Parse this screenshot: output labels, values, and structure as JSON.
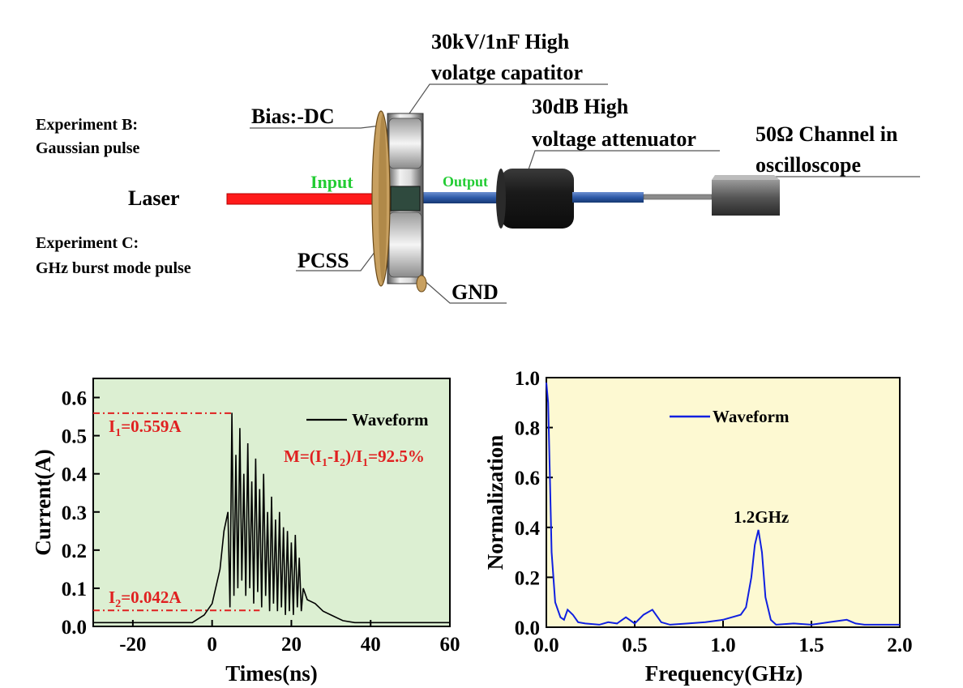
{
  "diagram": {
    "labels": {
      "capacitor_line1": "30kV/1nF High",
      "capacitor_line2": "volatge capatitor",
      "bias": "Bias:-DC",
      "attenuator_line1": "30dB High",
      "attenuator_line2": "voltage attenuator",
      "oscilloscope_line1": "50Ω Channel in",
      "oscilloscope_line2": "oscilloscope",
      "exp_b_line1": "Experiment B:",
      "exp_b_line2": "Gaussian pulse",
      "laser": "Laser",
      "input": "Input",
      "output": "Output",
      "exp_c_line1": "Experiment C:",
      "exp_c_line2": "GHz burst mode pulse",
      "pcss": "PCSS",
      "gnd": "GND"
    },
    "colors": {
      "laser": "#ff1a1a",
      "input_text": "#22cc33",
      "output_text": "#22cc33",
      "coax": "#2e5aa8",
      "disk": "#c8a060"
    }
  },
  "chart_data": [
    {
      "type": "line",
      "xlabel": "Times(ns)",
      "ylabel": "Current(A)",
      "xlim": [
        -30,
        60
      ],
      "ylim": [
        0,
        0.65
      ],
      "xticks": [
        -20,
        0,
        20,
        40,
        60
      ],
      "yticks": [
        0.0,
        0.1,
        0.2,
        0.3,
        0.4,
        0.5,
        0.6
      ],
      "background": "#dcefd2",
      "legend": {
        "placement": "top-right",
        "entries": [
          "Waveform"
        ]
      },
      "series": [
        {
          "name": "Waveform",
          "color": "#000000",
          "x": [
            -30,
            -5,
            -2,
            0,
            2,
            3,
            4,
            4.5,
            5,
            5.5,
            6,
            6.5,
            7,
            7.5,
            8,
            8.5,
            9,
            9.5,
            10,
            10.5,
            11,
            11.5,
            12,
            12.5,
            13,
            13.5,
            14,
            14.5,
            15,
            15.5,
            16,
            16.5,
            17,
            17.5,
            18,
            18.5,
            19,
            19.5,
            20,
            20.5,
            21,
            21.5,
            22,
            22.5,
            23,
            24,
            26,
            28,
            30,
            33,
            36,
            40,
            50,
            60
          ],
          "y": [
            0.01,
            0.01,
            0.03,
            0.06,
            0.15,
            0.25,
            0.3,
            0.05,
            0.56,
            0.08,
            0.45,
            0.1,
            0.52,
            0.12,
            0.4,
            0.08,
            0.48,
            0.1,
            0.38,
            0.06,
            0.44,
            0.09,
            0.36,
            0.05,
            0.4,
            0.08,
            0.3,
            0.04,
            0.34,
            0.06,
            0.28,
            0.04,
            0.3,
            0.05,
            0.26,
            0.03,
            0.25,
            0.04,
            0.22,
            0.03,
            0.24,
            0.05,
            0.18,
            0.04,
            0.1,
            0.07,
            0.06,
            0.04,
            0.03,
            0.015,
            0.01,
            0.01,
            0.01,
            0.01
          ]
        }
      ],
      "annotations": {
        "i1": {
          "label": "I",
          "sub": "1",
          "rest": "=0.559A",
          "value": 0.559,
          "x_end": 5
        },
        "i2": {
          "label": "I",
          "sub": "2",
          "rest": "=0.042A",
          "value": 0.042,
          "x_end": 12
        },
        "m_prefix": "M=(I",
        "m_sub1": "1",
        "m_mid": "-I",
        "m_sub2": "2",
        "m_close": ")/I",
        "m_sub3": "1",
        "m_value": "=92.5%",
        "color": "#e02020"
      }
    },
    {
      "type": "line",
      "xlabel": "Frequency(GHz)",
      "ylabel": "Normalization",
      "xlim": [
        0,
        2.0
      ],
      "ylim": [
        0,
        1.0
      ],
      "xticks": [
        0.0,
        0.5,
        1.0,
        1.5,
        2.0
      ],
      "yticks": [
        0.0,
        0.2,
        0.4,
        0.6,
        0.8,
        1.0
      ],
      "xtick_labels": [
        "0.0",
        "0.5",
        "1.0",
        "1.5",
        "2.0"
      ],
      "ytick_labels": [
        "0.0",
        "0.2",
        "0.4",
        "0.6",
        "0.8",
        "1.0"
      ],
      "background": "#fdf9d2",
      "legend": {
        "placement": "top-center",
        "entries": [
          "Waveform"
        ]
      },
      "peak_label": "1.2GHz",
      "series": [
        {
          "name": "Waveform",
          "color": "#1020e0",
          "x": [
            0.0,
            0.01,
            0.02,
            0.03,
            0.05,
            0.08,
            0.1,
            0.12,
            0.15,
            0.18,
            0.22,
            0.3,
            0.35,
            0.4,
            0.45,
            0.5,
            0.55,
            0.6,
            0.65,
            0.7,
            0.8,
            0.9,
            1.0,
            1.05,
            1.1,
            1.13,
            1.16,
            1.18,
            1.2,
            1.22,
            1.24,
            1.27,
            1.3,
            1.4,
            1.5,
            1.6,
            1.7,
            1.75,
            1.8,
            1.9,
            2.0
          ],
          "y": [
            0.98,
            0.9,
            0.6,
            0.3,
            0.1,
            0.04,
            0.03,
            0.07,
            0.05,
            0.02,
            0.015,
            0.01,
            0.02,
            0.015,
            0.04,
            0.015,
            0.05,
            0.07,
            0.02,
            0.01,
            0.015,
            0.02,
            0.03,
            0.04,
            0.05,
            0.08,
            0.2,
            0.33,
            0.39,
            0.3,
            0.12,
            0.03,
            0.01,
            0.015,
            0.01,
            0.02,
            0.03,
            0.015,
            0.01,
            0.01,
            0.01
          ]
        }
      ]
    }
  ]
}
